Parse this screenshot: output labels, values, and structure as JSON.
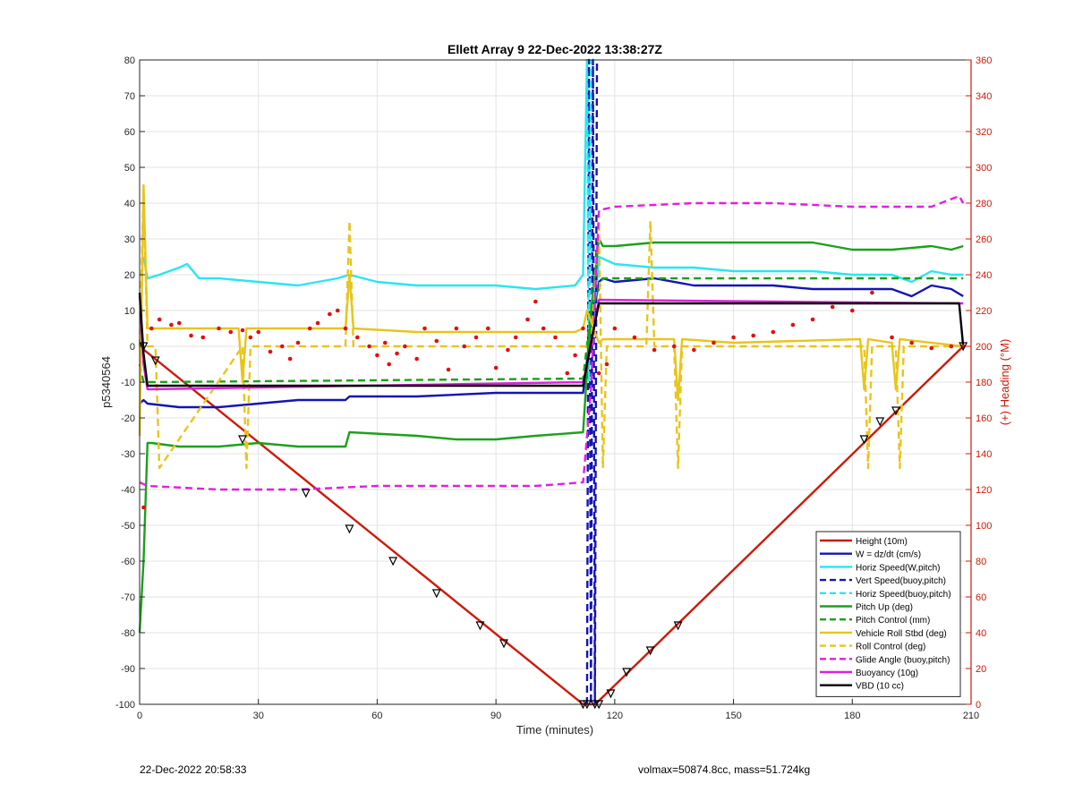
{
  "chart_data": {
    "type": "line",
    "title": "Ellett Array 9 22-Dec-2022 13:38:27Z",
    "xlabel": "Time (minutes)",
    "ylabel": "p5340564",
    "y2label": "(+) Heading (°M)",
    "xlim": [
      0,
      210
    ],
    "ylim": [
      -100,
      80
    ],
    "y2lim": [
      0,
      360
    ],
    "xticks": [
      0,
      30,
      60,
      90,
      120,
      150,
      180,
      210
    ],
    "yticks": [
      -100,
      -90,
      -80,
      -70,
      -60,
      -50,
      -40,
      -30,
      -20,
      -10,
      0,
      10,
      20,
      30,
      40,
      50,
      60,
      70,
      80
    ],
    "y2ticks": [
      0,
      20,
      40,
      60,
      80,
      100,
      120,
      140,
      160,
      180,
      200,
      220,
      240,
      260,
      280,
      300,
      320,
      340,
      360
    ],
    "grid": true,
    "legend_position": "bottom-right",
    "colors": {
      "height": "#cc1a0a",
      "w": "#1414b4",
      "horiz": "#29e6ee",
      "pitch": "#1ca01c",
      "roll": "#e8c51c",
      "glide": "#e01fe0",
      "buoy": "#e01fe0",
      "vbd": "#000000",
      "heading": "#e01010",
      "right_axis": "#cc1a0a"
    },
    "series": [
      {
        "name": "Height (10m)",
        "color": "#cc1a0a",
        "style": "solid",
        "x": [
          0,
          112,
          113,
          114,
          115,
          116,
          208
        ],
        "y": [
          0,
          -100,
          -100,
          -100,
          -100,
          -99,
          0
        ]
      },
      {
        "name": "W = dz/dt (cm/s)",
        "color": "#1414b4",
        "style": "solid",
        "x": [
          0,
          1,
          2,
          10,
          20,
          30,
          40,
          52,
          53,
          70,
          90,
          100,
          112,
          114,
          116,
          117,
          120,
          130,
          140,
          150,
          160,
          170,
          180,
          190,
          195,
          200,
          205,
          208
        ],
        "y": [
          -16,
          -15,
          -16,
          -17,
          -17,
          -16,
          -15,
          -15,
          -14,
          -14,
          -13,
          -13,
          -13,
          5,
          18,
          19,
          18,
          19,
          17,
          17,
          17,
          16,
          16,
          16,
          14,
          17,
          16,
          14
        ]
      },
      {
        "name": "Horiz Speed(W,pitch)",
        "color": "#29e6ee",
        "style": "solid",
        "x": [
          1,
          2,
          5,
          10,
          12,
          15,
          20,
          30,
          40,
          50,
          53,
          60,
          70,
          80,
          90,
          100,
          110,
          112,
          113,
          114,
          115,
          116,
          118,
          120,
          130,
          140,
          150,
          160,
          170,
          180,
          190,
          195,
          200,
          205,
          208
        ],
        "y": [
          25,
          19,
          20,
          22,
          23,
          19,
          19,
          18,
          17,
          19,
          20,
          18,
          17,
          17,
          17,
          16,
          17,
          20,
          80,
          30,
          10,
          25,
          24,
          23,
          22,
          22,
          21,
          21,
          21,
          20,
          20,
          18,
          21,
          20,
          20
        ]
      },
      {
        "name": "Vert Speed(buoy,pitch)",
        "color": "#1414b4",
        "style": "dashed",
        "x": [
          113,
          113.5,
          114,
          114.5,
          115,
          115.5
        ],
        "y": [
          -100,
          80,
          -100,
          80,
          -100,
          80
        ]
      },
      {
        "name": "Horiz Speed(buoy,pitch)",
        "color": "#29e6ee",
        "style": "dashed",
        "x": [
          113,
          113.5,
          114
        ],
        "y": [
          80,
          -10,
          80
        ]
      },
      {
        "name": "Pitch Up (deg)",
        "color": "#1ca01c",
        "style": "solid",
        "x": [
          0,
          1,
          2,
          3,
          10,
          20,
          30,
          40,
          52,
          53,
          70,
          80,
          90,
          100,
          112,
          114,
          116,
          117,
          120,
          130,
          140,
          150,
          160,
          170,
          180,
          190,
          200,
          205,
          208
        ],
        "y": [
          -80,
          -60,
          -27,
          -27,
          -28,
          -28,
          -27,
          -28,
          -28,
          -24,
          -25,
          -26,
          -26,
          -25,
          -24,
          10,
          30,
          28,
          28,
          29,
          29,
          29,
          29,
          29,
          27,
          27,
          28,
          27,
          28
        ]
      },
      {
        "name": "Pitch Control (mm)",
        "color": "#1ca01c",
        "style": "dashed",
        "x": [
          0,
          1,
          2,
          112,
          114,
          117,
          208
        ],
        "y": [
          -5,
          -10,
          -10,
          -9,
          10,
          19,
          19
        ]
      },
      {
        "name": "Vehicle Roll Stbd (deg)",
        "color": "#e8c51c",
        "style": "solid",
        "x": [
          0,
          1,
          2,
          3,
          25,
          26,
          27,
          52,
          53,
          54,
          70,
          90,
          110,
          112,
          113,
          116,
          117,
          130,
          135,
          136,
          137,
          150,
          182,
          183,
          184,
          190,
          191,
          192,
          208
        ],
        "y": [
          -25,
          45,
          5,
          5,
          5,
          -10,
          5,
          5,
          20,
          5,
          4,
          4,
          4,
          5,
          10,
          1,
          2,
          2,
          2,
          -15,
          2,
          1,
          2,
          -12,
          2,
          1,
          -12,
          2,
          0
        ]
      },
      {
        "name": "Roll Control (deg)",
        "color": "#e8c51c",
        "style": "dashed",
        "x": [
          0,
          1,
          2,
          4,
          5,
          26,
          27,
          28,
          52,
          53,
          54,
          113,
          114,
          116,
          117,
          118,
          128,
          129,
          130,
          135,
          136,
          137,
          183,
          184,
          185,
          191,
          192,
          193,
          208
        ],
        "y": [
          0,
          44,
          0,
          0,
          -34,
          0,
          -34,
          0,
          0,
          35,
          0,
          0,
          0,
          35,
          -34,
          0,
          0,
          35,
          0,
          0,
          -34,
          0,
          0,
          -34,
          0,
          0,
          -34,
          0,
          0
        ]
      },
      {
        "name": "Glide Angle (buoy,pitch)",
        "color": "#e01fe0",
        "style": "dashed",
        "x": [
          0,
          2,
          20,
          40,
          60,
          80,
          100,
          112,
          114,
          116,
          120,
          140,
          160,
          180,
          200,
          207,
          208
        ],
        "y": [
          -38,
          -39,
          -40,
          -40,
          -39,
          -39,
          -39,
          -38,
          -12,
          38,
          39,
          40,
          40,
          39,
          39,
          42,
          40
        ]
      },
      {
        "name": "Buoyancy (10g)",
        "color": "#e01fe0",
        "style": "solid",
        "x": [
          0,
          1,
          2,
          112,
          114,
          116,
          208
        ],
        "y": [
          14,
          -5,
          -12,
          -10,
          0,
          13,
          12
        ]
      },
      {
        "name": "VBD (10 cc)",
        "color": "#000000",
        "style": "solid",
        "x": [
          0,
          1,
          2,
          112,
          114,
          116,
          207,
          208
        ],
        "y": [
          15,
          -2,
          -11,
          -11,
          1,
          12,
          12,
          0
        ]
      }
    ],
    "heading_points": {
      "name": "Heading",
      "color": "#e01010",
      "axis": "right",
      "x": [
        1,
        3,
        5,
        8,
        10,
        13,
        16,
        20,
        23,
        26,
        28,
        30,
        33,
        36,
        38,
        40,
        43,
        45,
        48,
        50,
        52,
        55,
        58,
        60,
        62,
        63,
        65,
        67,
        70,
        72,
        75,
        78,
        80,
        82,
        85,
        88,
        90,
        93,
        95,
        98,
        100,
        102,
        105,
        108,
        110,
        112,
        116,
        118,
        120,
        125,
        130,
        135,
        140,
        145,
        150,
        155,
        160,
        165,
        170,
        175,
        180,
        185,
        190,
        195,
        200,
        205,
        208
      ],
      "y": [
        110,
        210,
        215,
        212,
        213,
        206,
        205,
        210,
        208,
        209,
        205,
        208,
        197,
        200,
        193,
        202,
        210,
        213,
        218,
        220,
        210,
        205,
        200,
        195,
        202,
        190,
        196,
        200,
        193,
        210,
        203,
        187,
        210,
        200,
        205,
        210,
        188,
        198,
        205,
        215,
        225,
        210,
        205,
        185,
        195,
        210,
        185,
        190,
        210,
        205,
        198,
        200,
        198,
        202,
        205,
        206,
        208,
        212,
        215,
        222,
        220,
        230,
        205,
        202,
        199,
        200,
        200
      ]
    },
    "markers": {
      "x": [
        1,
        4,
        26,
        42,
        53,
        64,
        75,
        86,
        92,
        112,
        113,
        115,
        116,
        119,
        123,
        129,
        136,
        183,
        187,
        191,
        208
      ],
      "y": [
        0,
        -4,
        -26,
        -41,
        -51,
        -60,
        -69,
        -78,
        -83,
        -100,
        -100,
        -100,
        -100,
        -97,
        -91,
        -85,
        -78,
        -26,
        -21,
        -18,
        0
      ]
    }
  },
  "footer": {
    "left": "22-Dec-2022 20:58:33",
    "right": "volmax=50874.8cc, mass=51.724kg"
  }
}
